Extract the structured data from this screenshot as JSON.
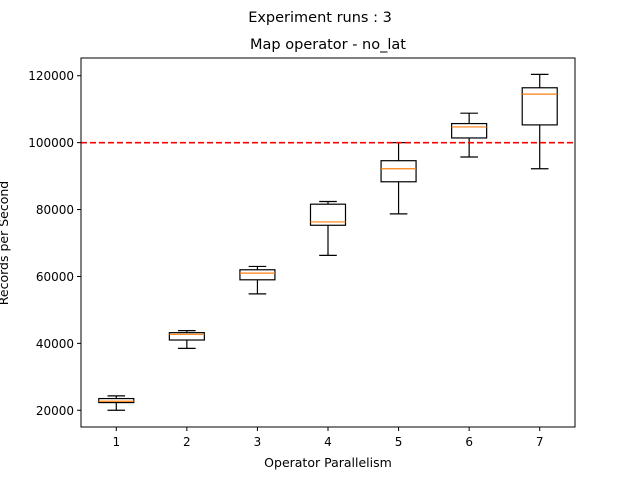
{
  "chart_data": {
    "type": "box",
    "suptitle": "Experiment runs : 3",
    "title": "Map operator - no_lat",
    "xlabel": "Operator Parallelism",
    "ylabel": "Records per Second",
    "categories": [
      "1",
      "2",
      "3",
      "4",
      "5",
      "6",
      "7"
    ],
    "boxes": [
      {
        "label": "1",
        "whisker_low": 20000,
        "q1": 22300,
        "median": 22700,
        "q3": 23500,
        "whisker_high": 24300
      },
      {
        "label": "2",
        "whisker_low": 38500,
        "q1": 41000,
        "median": 42700,
        "q3": 43200,
        "whisker_high": 43800
      },
      {
        "label": "3",
        "whisker_low": 54800,
        "q1": 59000,
        "median": 61000,
        "q3": 62000,
        "whisker_high": 63000
      },
      {
        "label": "4",
        "whisker_low": 66300,
        "q1": 75300,
        "median": 76300,
        "q3": 81600,
        "whisker_high": 82400
      },
      {
        "label": "5",
        "whisker_low": 78700,
        "q1": 88300,
        "median": 92200,
        "q3": 94600,
        "whisker_high": 100000
      },
      {
        "label": "6",
        "whisker_low": 95700,
        "q1": 101400,
        "median": 104700,
        "q3": 105700,
        "whisker_high": 108800
      },
      {
        "label": "7",
        "whisker_low": 92200,
        "q1": 105300,
        "median": 114500,
        "q3": 116400,
        "whisker_high": 120400
      }
    ],
    "reference_line": {
      "y": 100000,
      "color": "#ff0000",
      "style": "dashed"
    },
    "yticks": [
      20000,
      40000,
      60000,
      80000,
      100000,
      120000
    ],
    "ytick_labels": [
      "20000",
      "40000",
      "60000",
      "80000",
      "100000",
      "120000"
    ],
    "ylim": [
      15000,
      125300
    ],
    "xlim": [
      0.5,
      7.5
    ],
    "grid": false,
    "colors": {
      "box": "#000000",
      "median": "#ff7f0e",
      "reference": "#ff0000"
    }
  }
}
